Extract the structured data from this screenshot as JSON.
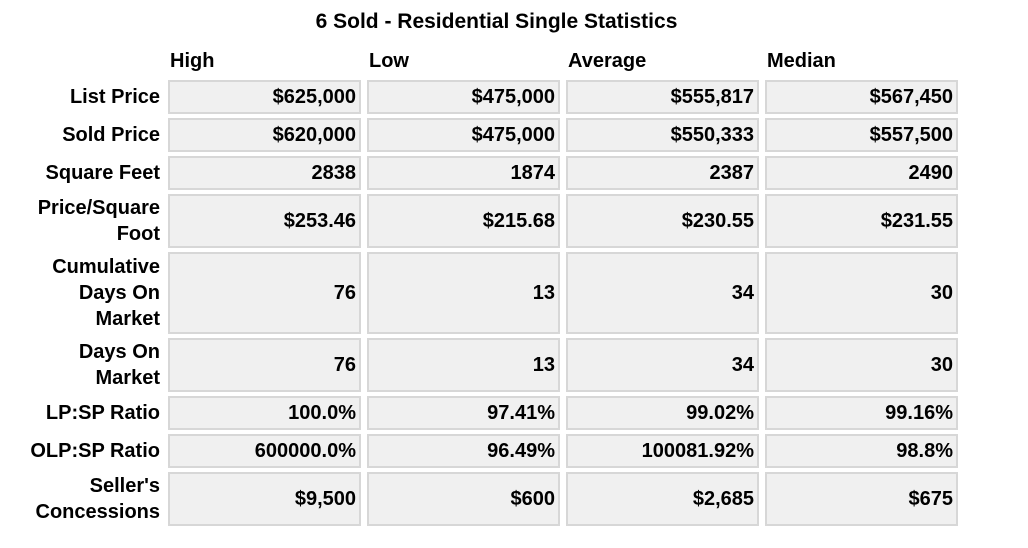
{
  "title": "6 Sold - Residential Single Statistics",
  "columns": [
    "High",
    "Low",
    "Average",
    "Median"
  ],
  "rows": [
    {
      "label": "List Price",
      "values": [
        "$625,000",
        "$475,000",
        "$555,817",
        "$567,450"
      ]
    },
    {
      "label": "Sold Price",
      "values": [
        "$620,000",
        "$475,000",
        "$550,333",
        "$557,500"
      ]
    },
    {
      "label": "Square Feet",
      "values": [
        "2838",
        "1874",
        "2387",
        "2490"
      ]
    },
    {
      "label": "Price/Square Foot",
      "values": [
        "$253.46",
        "$215.68",
        "$230.55",
        "$231.55"
      ]
    },
    {
      "label": "Cumulative Days On Market",
      "values": [
        "76",
        "13",
        "34",
        "30"
      ]
    },
    {
      "label": "Days On Market",
      "values": [
        "76",
        "13",
        "34",
        "30"
      ]
    },
    {
      "label": "LP:SP Ratio",
      "values": [
        "100.0%",
        "97.41%",
        "99.02%",
        "99.16%"
      ]
    },
    {
      "label": "OLP:SP Ratio",
      "values": [
        "600000.0%",
        "96.49%",
        "100081.92%",
        "98.8%"
      ]
    },
    {
      "label": "Seller's Concessions",
      "values": [
        "$9,500",
        "$600",
        "$2,685",
        "$675"
      ]
    }
  ]
}
